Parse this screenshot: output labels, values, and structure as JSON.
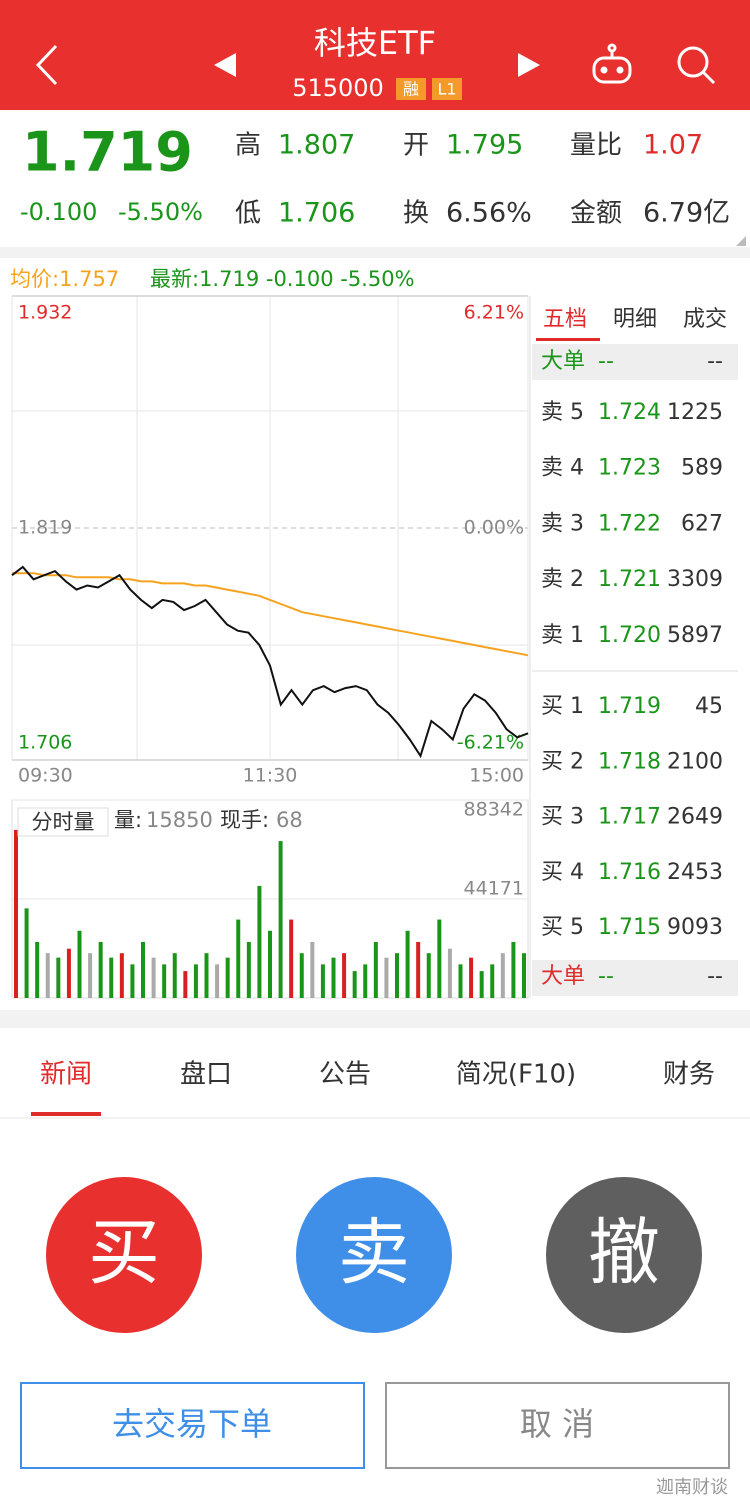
{
  "header": {
    "title": "科技ETF",
    "code": "515000",
    "badges": [
      "融",
      "L1"
    ]
  },
  "quote": {
    "price": "1.719",
    "change": "-0.100",
    "change_pct": "-5.50%",
    "stats": [
      {
        "label": "高",
        "value": "1.807"
      },
      {
        "label": "开",
        "value": "1.795"
      },
      {
        "label": "量比",
        "value": "1.07"
      },
      {
        "label": "低",
        "value": "1.706"
      },
      {
        "label": "换",
        "value": "6.56%"
      },
      {
        "label": "金额",
        "value": "6.79亿"
      }
    ]
  },
  "chart_data": [
    {
      "type": "line",
      "avg_label": "均价:1.757",
      "last_label": "最新:1.719 -0.100 -5.50%",
      "x": [
        0,
        5,
        10,
        15,
        20,
        25,
        30,
        35,
        40,
        45,
        50,
        55,
        60,
        65,
        70,
        75,
        80,
        85,
        90,
        95,
        100,
        105,
        110,
        115,
        120,
        125,
        130,
        135,
        140,
        145,
        150,
        155,
        160,
        165,
        170,
        175,
        180,
        185,
        190,
        195,
        200,
        205,
        210,
        215,
        220,
        225,
        230,
        235,
        240
      ],
      "xlim": [
        0,
        240
      ],
      "xticks": [
        {
          "value": 0,
          "label": "09:30"
        },
        {
          "value": 120,
          "label": "11:30"
        },
        {
          "value": 240,
          "label": "15:00"
        }
      ],
      "ylim": [
        1.706,
        1.932
      ],
      "yticks": [
        1.706,
        1.819,
        1.932
      ],
      "y2lim": [
        -6.21,
        6.21
      ],
      "y2ticks": [
        {
          "value": -6.21,
          "label": "-6.21%"
        },
        {
          "value": 0,
          "label": "0.00%"
        },
        {
          "value": 6.21,
          "label": "6.21%"
        }
      ],
      "series": [
        {
          "color": "#f5a31f",
          "values": [
            1.797,
            1.797,
            1.797,
            1.796,
            1.796,
            1.796,
            1.795,
            1.795,
            1.795,
            1.795,
            1.794,
            1.794,
            1.793,
            1.793,
            1.792,
            1.792,
            1.792,
            1.791,
            1.791,
            1.79,
            1.789,
            1.788,
            1.787,
            1.786,
            1.784,
            1.782,
            1.78,
            1.778,
            1.777,
            1.776,
            1.775,
            1.774,
            1.773,
            1.772,
            1.771,
            1.77,
            1.769,
            1.768,
            1.767,
            1.766,
            1.765,
            1.764,
            1.763,
            1.762,
            1.761,
            1.76,
            1.759,
            1.758,
            1.757
          ]
        },
        {
          "color": "#111111",
          "values": [
            1.796,
            1.8,
            1.794,
            1.796,
            1.798,
            1.793,
            1.789,
            1.791,
            1.79,
            1.793,
            1.796,
            1.789,
            1.784,
            1.78,
            1.784,
            1.783,
            1.779,
            1.781,
            1.784,
            1.778,
            1.772,
            1.769,
            1.768,
            1.762,
            1.752,
            1.733,
            1.74,
            1.733,
            1.74,
            1.742,
            1.739,
            1.741,
            1.742,
            1.74,
            1.733,
            1.729,
            1.723,
            1.716,
            1.708,
            1.725,
            1.721,
            1.716,
            1.731,
            1.738,
            1.735,
            1.729,
            1.721,
            1.717,
            1.719
          ]
        }
      ]
    },
    {
      "type": "bar",
      "title": "分时量",
      "stats": [
        {
          "label": "量:",
          "value": "15850"
        },
        {
          "label": "现手:",
          "value": "68"
        }
      ],
      "x": [
        0,
        5,
        10,
        15,
        20,
        25,
        30,
        35,
        40,
        45,
        50,
        55,
        60,
        65,
        70,
        75,
        80,
        85,
        90,
        95,
        100,
        105,
        110,
        115,
        120,
        125,
        130,
        135,
        140,
        145,
        150,
        155,
        160,
        165,
        170,
        175,
        180,
        185,
        190,
        195,
        200,
        205,
        210,
        215,
        220,
        225,
        230,
        235,
        240
      ],
      "xlim": [
        0,
        240
      ],
      "ylim": [
        0,
        88342
      ],
      "yticks": [
        44171,
        88342
      ],
      "values": [
        75000,
        40000,
        25000,
        20000,
        18000,
        22000,
        30000,
        20000,
        25000,
        18000,
        20000,
        15000,
        25000,
        18000,
        15000,
        20000,
        12000,
        15000,
        20000,
        15000,
        18000,
        35000,
        25000,
        50000,
        30000,
        70000,
        35000,
        20000,
        25000,
        15000,
        18000,
        20000,
        12000,
        15000,
        25000,
        18000,
        20000,
        30000,
        25000,
        20000,
        35000,
        22000,
        15000,
        18000,
        12000,
        15000,
        20000,
        25000,
        20000
      ],
      "colors": [
        "#d82020",
        "#1a951a",
        "#1a951a",
        "#aaaaaa",
        "#1a951a",
        "#d82020",
        "#1a951a",
        "#aaaaaa",
        "#1a951a",
        "#1a951a",
        "#d82020",
        "#1a951a",
        "#1a951a",
        "#aaaaaa",
        "#1a951a",
        "#1a951a",
        "#d82020",
        "#1a951a",
        "#1a951a",
        "#aaaaaa",
        "#1a951a",
        "#1a951a",
        "#1a951a",
        "#1a951a",
        "#1a951a",
        "#1a951a",
        "#d82020",
        "#1a951a",
        "#aaaaaa",
        "#1a951a",
        "#1a951a",
        "#d82020",
        "#1a951a",
        "#1a951a",
        "#1a951a",
        "#aaaaaa",
        "#1a951a",
        "#1a951a",
        "#d82020",
        "#1a951a",
        "#1a951a",
        "#aaaaaa",
        "#1a951a",
        "#d82020",
        "#1a951a",
        "#1a951a",
        "#aaaaaa",
        "#1a951a",
        "#1a951a"
      ]
    }
  ],
  "order_book": {
    "tabs": [
      "五档",
      "明细",
      "成交"
    ],
    "big_top": {
      "label": "大单",
      "price": "--",
      "volume": "--"
    },
    "sell": [
      {
        "label": "卖 5",
        "price": "1.724",
        "volume": "1225"
      },
      {
        "label": "卖 4",
        "price": "1.723",
        "volume": "589"
      },
      {
        "label": "卖 3",
        "price": "1.722",
        "volume": "627"
      },
      {
        "label": "卖 2",
        "price": "1.721",
        "volume": "3309"
      },
      {
        "label": "卖 1",
        "price": "1.720",
        "volume": "5897"
      }
    ],
    "buy": [
      {
        "label": "买 1",
        "price": "1.719",
        "volume": "45"
      },
      {
        "label": "买 2",
        "price": "1.718",
        "volume": "2100"
      },
      {
        "label": "买 3",
        "price": "1.717",
        "volume": "2649"
      },
      {
        "label": "买 4",
        "price": "1.716",
        "volume": "2453"
      },
      {
        "label": "买 5",
        "price": "1.715",
        "volume": "9093"
      }
    ],
    "big_bottom": {
      "label": "大单",
      "price": "--",
      "volume": "--"
    }
  },
  "tabs": [
    "新闻",
    "盘口",
    "公告",
    "简况(F10)",
    "财务"
  ],
  "actions": {
    "buy": "买",
    "sell": "卖",
    "cancel": "撤",
    "trade": "去交易下单",
    "dismiss": "取 消"
  },
  "watermark": "迦南财谈"
}
